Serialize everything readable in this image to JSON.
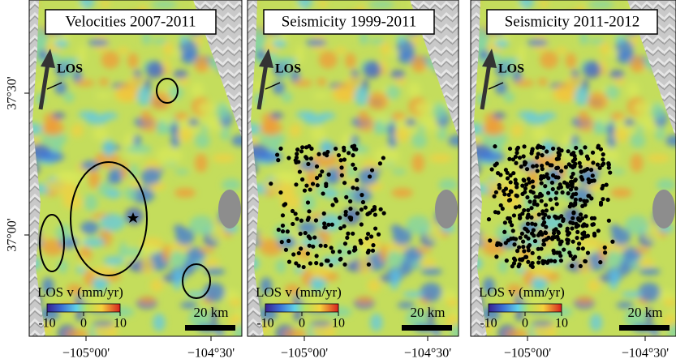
{
  "panels": [
    {
      "title": "Velocities 2007-2011",
      "los": "LOS",
      "legend_title": "LOS v (mm/yr)",
      "colorbar_ticks": [
        -10,
        0,
        10
      ],
      "scale": "20 km",
      "x_ticks": [
        "−105°00'",
        "−104°30'"
      ]
    },
    {
      "title": "Seismicity 1999-2011",
      "los": "LOS",
      "legend_title": "LOS v (mm/yr)",
      "colorbar_ticks": [
        -10,
        0,
        10
      ],
      "scale": "20 km",
      "x_ticks": [
        "−105°00'",
        "−104°30'"
      ]
    },
    {
      "title": "Seismicity 2011-2012",
      "los": "LOS",
      "legend_title": "LOS v (mm/yr)",
      "colorbar_ticks": [
        -10,
        0,
        10
      ],
      "scale": "20 km",
      "x_ticks": [
        "−105°00'",
        "−104°30'"
      ]
    }
  ],
  "y_ticks": [
    "37°30'",
    "37°00'"
  ]
}
